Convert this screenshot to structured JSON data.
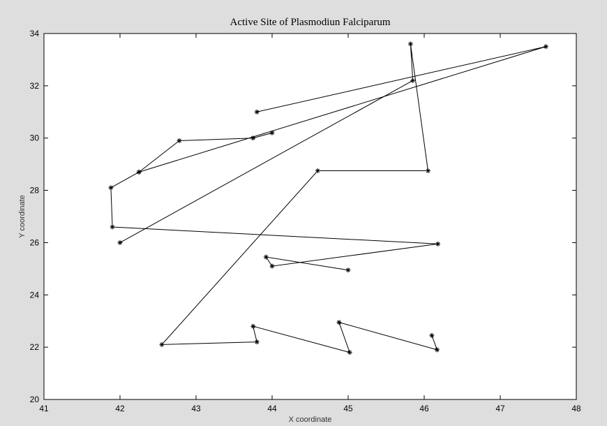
{
  "chart_data": {
    "type": "line",
    "title": "Active Site of Plasmodiun Falciparum",
    "xlabel": "X coordinate",
    "ylabel": "Y coordinate",
    "xlim": [
      41,
      48
    ],
    "ylim": [
      20,
      34
    ],
    "xticks": [
      "41",
      "42",
      "43",
      "44",
      "45",
      "46",
      "47",
      "48"
    ],
    "yticks": [
      "20",
      "22",
      "24",
      "26",
      "28",
      "30",
      "32",
      "34"
    ],
    "grid": false,
    "marker": "star",
    "line_color": "#000000",
    "series": [
      {
        "points": [
          [
            44.0,
            30.2
          ],
          [
            43.75,
            30.0
          ],
          [
            42.78,
            29.9
          ],
          [
            42.25,
            28.7
          ],
          [
            41.88,
            28.1
          ],
          [
            41.9,
            26.6
          ],
          [
            46.18,
            25.95
          ],
          [
            44.0,
            25.1
          ],
          [
            43.92,
            25.45
          ],
          [
            45.0,
            24.95
          ]
        ]
      },
      {
        "points": [
          [
            43.8,
            31.0
          ],
          [
            47.6,
            33.5
          ],
          [
            42.25,
            28.7
          ]
        ]
      },
      {
        "points": [
          [
            42.0,
            26.0
          ],
          [
            45.85,
            32.2
          ],
          [
            45.82,
            33.6
          ],
          [
            46.05,
            28.75
          ],
          [
            44.6,
            28.75
          ],
          [
            42.55,
            22.1
          ],
          [
            43.8,
            22.2
          ],
          [
            43.75,
            22.8
          ],
          [
            45.02,
            21.8
          ],
          [
            44.88,
            22.95
          ],
          [
            46.17,
            21.9
          ],
          [
            46.1,
            22.45
          ]
        ]
      }
    ]
  }
}
